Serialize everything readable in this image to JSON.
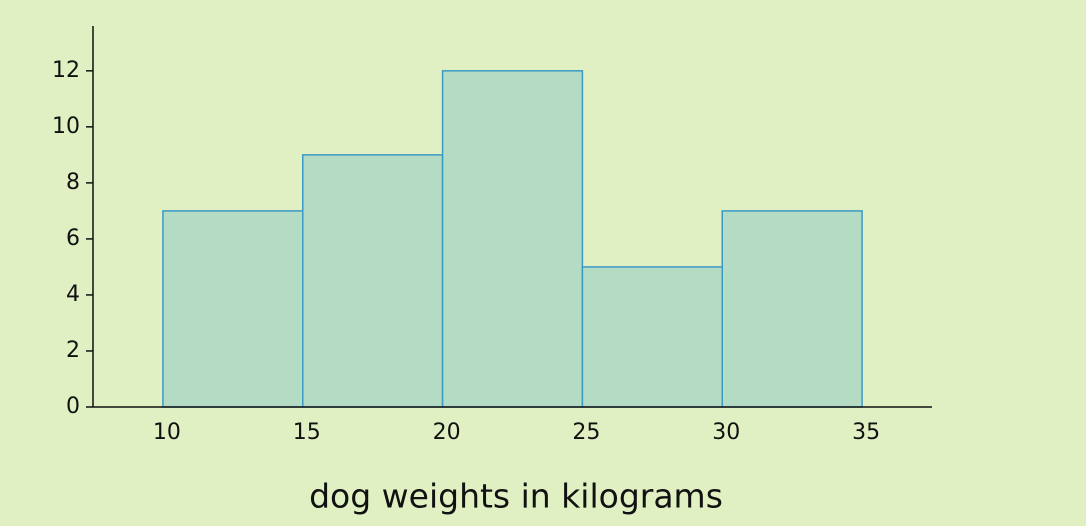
{
  "chart_data": {
    "type": "histogram",
    "x_label": "dog weights in kilograms",
    "bins": [
      10,
      15,
      20,
      25,
      30,
      35
    ],
    "values": [
      7,
      9,
      12,
      5,
      7
    ],
    "color": "#b4dcc4",
    "edge_color": "#3b99c6",
    "xlim": [
      7.5,
      37.5
    ],
    "xticks": [
      10,
      15,
      20,
      25,
      30,
      35
    ],
    "ylim": [
      0,
      13.6
    ],
    "yticks": [
      0,
      2,
      4,
      6,
      8,
      10,
      12
    ],
    "grid": false
  }
}
